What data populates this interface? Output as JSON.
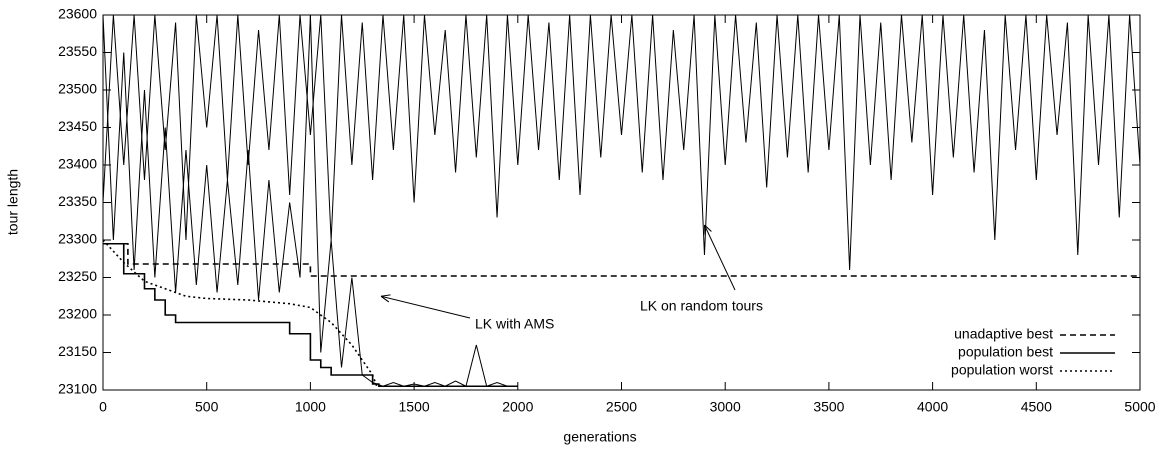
{
  "chart_data": {
    "type": "line",
    "xlabel": "generations",
    "ylabel": "tour length",
    "xlim": [
      0,
      5000
    ],
    "xticks": [
      0,
      500,
      1000,
      1500,
      2000,
      2500,
      3000,
      3500,
      4000,
      4500,
      5000
    ],
    "ylim": [
      23100,
      23600
    ],
    "yticks": [
      23100,
      23150,
      23200,
      23250,
      23300,
      23350,
      23400,
      23450,
      23500,
      23550,
      23600
    ],
    "legend": "lower right",
    "annotations": [
      "LK with AMS",
      "LK on random tours"
    ],
    "series": [
      {
        "color": "#000000",
        "dash": "solid",
        "x": [
          0,
          50,
          100,
          150,
          200,
          250,
          300,
          350,
          400,
          450,
          500,
          550,
          600,
          650,
          700,
          750,
          800,
          850,
          900,
          950,
          1000,
          1050,
          1100,
          1150,
          1200,
          1250,
          1300,
          1350,
          1400,
          1450,
          1500,
          1550,
          1600,
          1650,
          1700,
          1750,
          1800,
          1850,
          1900,
          1950,
          2000,
          2050,
          2100,
          2150,
          2200,
          2250,
          2300,
          2350,
          2400,
          2450,
          2500,
          2550,
          2600,
          2650,
          2700,
          2750,
          2800,
          2850,
          2900,
          2950,
          3000,
          3050,
          3100,
          3150,
          3200,
          3250,
          3300,
          3350,
          3400,
          3450,
          3500,
          3550,
          3600,
          3650,
          3700,
          3750,
          3800,
          3850,
          3900,
          3950,
          4000,
          4050,
          4100,
          4150,
          4200,
          4250,
          4300,
          4350,
          4400,
          4450,
          4500,
          4550,
          4600,
          4650,
          4700,
          4750,
          4800,
          4850,
          4900,
          4950,
          5000
        ],
        "values": [
          23350,
          23600,
          23400,
          23600,
          23380,
          23600,
          23420,
          23590,
          23300,
          23600,
          23450,
          23600,
          23380,
          23600,
          23400,
          23580,
          23420,
          23600,
          23360,
          23600,
          23440,
          23600,
          23300,
          23600,
          23400,
          23590,
          23380,
          23600,
          23420,
          23600,
          23350,
          23600,
          23440,
          23580,
          23390,
          23600,
          23410,
          23600,
          23330,
          23600,
          23400,
          23600,
          23420,
          23590,
          23380,
          23600,
          23360,
          23600,
          23410,
          23600,
          23440,
          23600,
          23390,
          23600,
          23380,
          23580,
          23420,
          23600,
          23280,
          23600,
          23400,
          23600,
          23430,
          23590,
          23370,
          23600,
          23410,
          23600,
          23390,
          23600,
          23420,
          23600,
          23260,
          23600,
          23400,
          23590,
          23380,
          23600,
          23430,
          23600,
          23360,
          23600,
          23410,
          23600,
          23390,
          23580,
          23300,
          23600,
          23420,
          23600,
          23380,
          23600,
          23440,
          23590,
          23280,
          23600,
          23400,
          23600,
          23330,
          23600,
          23400
        ]
      },
      {
        "color": "#000000",
        "dash": "solid",
        "x": [
          0,
          50,
          100,
          150,
          200,
          250,
          300,
          350,
          400,
          450,
          500,
          550,
          600,
          650,
          700,
          750,
          800,
          850,
          900,
          950,
          1000,
          1050,
          1100,
          1150,
          1200,
          1250,
          1300,
          1350,
          1400,
          1450,
          1500,
          1550,
          1600,
          1650,
          1700,
          1750,
          1800,
          1850,
          1900,
          1950,
          2000
        ],
        "values": [
          23600,
          23300,
          23550,
          23260,
          23500,
          23250,
          23450,
          23230,
          23420,
          23240,
          23400,
          23230,
          23380,
          23240,
          23420,
          23220,
          23380,
          23230,
          23350,
          23250,
          23600,
          23150,
          23300,
          23130,
          23250,
          23120,
          23110,
          23105,
          23110,
          23105,
          23108,
          23105,
          23110,
          23105,
          23112,
          23105,
          23160,
          23105,
          23110,
          23105,
          23105
        ]
      },
      {
        "name": "unadaptive best",
        "color": "#000000",
        "dash": "dashed",
        "x": [
          0,
          120,
          120,
          1000,
          1000,
          5000
        ],
        "values": [
          23295,
          23295,
          23268,
          23268,
          23252,
          23252
        ]
      },
      {
        "name": "population best",
        "color": "#000000",
        "dash": "solid",
        "x": [
          0,
          100,
          100,
          200,
          200,
          250,
          250,
          300,
          300,
          350,
          350,
          900,
          900,
          1000,
          1000,
          1050,
          1050,
          1100,
          1100,
          1300,
          1300,
          1330,
          1330,
          2000
        ],
        "values": [
          23295,
          23295,
          23255,
          23255,
          23235,
          23235,
          23220,
          23220,
          23200,
          23200,
          23190,
          23190,
          23175,
          23175,
          23140,
          23140,
          23130,
          23130,
          23120,
          23120,
          23108,
          23108,
          23105,
          23105
        ]
      },
      {
        "name": "population worst",
        "color": "#000000",
        "dash": "dotted",
        "x": [
          0,
          100,
          200,
          300,
          400,
          500,
          700,
          900,
          1000,
          1100,
          1200,
          1300,
          1320,
          2000
        ],
        "values": [
          23300,
          23270,
          23245,
          23235,
          23225,
          23222,
          23220,
          23215,
          23210,
          23190,
          23160,
          23120,
          23105,
          23105
        ]
      }
    ]
  }
}
